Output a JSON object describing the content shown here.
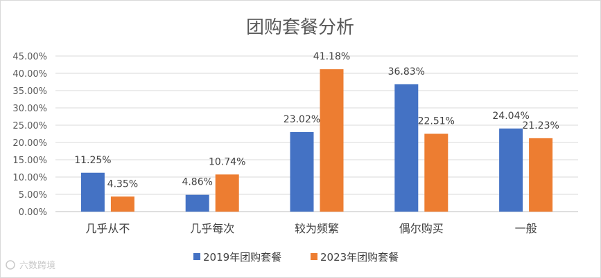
{
  "chart_data": {
    "type": "bar",
    "title": "团购套餐分析",
    "categories": [
      "几乎从不",
      "几乎每次",
      "较为频繁",
      "偶尔购买",
      "一般"
    ],
    "series": [
      {
        "name": "2019年团购套餐",
        "color": "#4472C4",
        "values": [
          11.25,
          4.86,
          23.02,
          36.83,
          24.04
        ],
        "labels": [
          "11.25%",
          "4.86%",
          "23.02%",
          "36.83%",
          "24.04%"
        ]
      },
      {
        "name": "2023年团购套餐",
        "color": "#ED7D31",
        "values": [
          4.35,
          10.74,
          41.18,
          22.51,
          21.23
        ],
        "labels": [
          "4.35%",
          "10.74%",
          "41.18%",
          "22.51%",
          "21.23%"
        ]
      }
    ],
    "yticks": [
      "0.00%",
      "5.00%",
      "10.00%",
      "15.00%",
      "20.00%",
      "25.00%",
      "30.00%",
      "35.00%",
      "40.00%",
      "45.00%"
    ],
    "ylim": [
      0,
      45
    ],
    "grid": true,
    "legend_position": "bottom"
  },
  "watermark": "六数跨境"
}
